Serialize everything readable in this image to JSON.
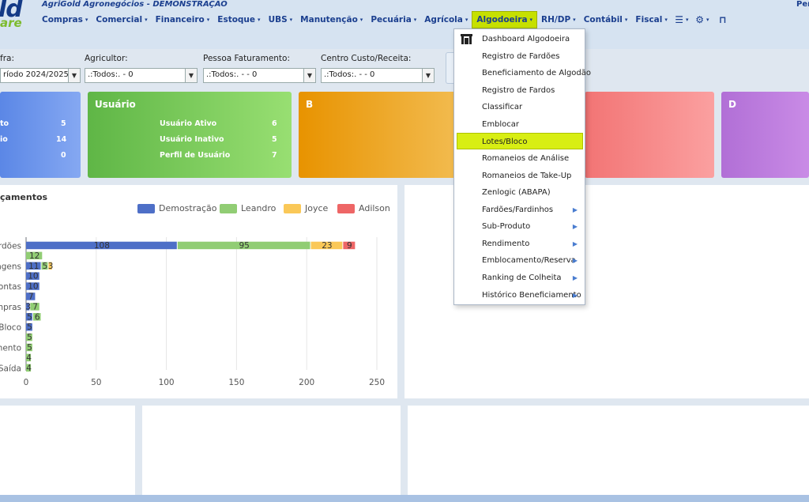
{
  "header": {
    "logo_main": "ld",
    "logo_sub": "are",
    "app_title": "AgriGold Agronegócios - DEMONSTRAÇÃO",
    "user_label": "Per"
  },
  "nav": [
    {
      "label": "Compras",
      "name": "nav-compras"
    },
    {
      "label": "Comercial",
      "name": "nav-comercial"
    },
    {
      "label": "Financeiro",
      "name": "nav-financeiro"
    },
    {
      "label": "Estoque",
      "name": "nav-estoque"
    },
    {
      "label": "UBS",
      "name": "nav-ubs"
    },
    {
      "label": "Manutenção",
      "name": "nav-manutencao"
    },
    {
      "label": "Pecuária",
      "name": "nav-pecuaria"
    },
    {
      "label": "Agrícola",
      "name": "nav-agricola"
    },
    {
      "label": "Algodoeira",
      "name": "nav-algodoeira"
    },
    {
      "label": "RH/DP",
      "name": "nav-rh-dp"
    },
    {
      "label": "Contábil",
      "name": "nav-contabil"
    },
    {
      "label": "Fiscal",
      "name": "nav-fiscal"
    }
  ],
  "nav_icons": {
    "menu_glyph": "☰",
    "gears_glyph": "⚙",
    "caret": "▾",
    "door_glyph": "⊓"
  },
  "filters": {
    "safra": {
      "label": "fra:",
      "value": "ríodo 2024/2025 -"
    },
    "agricultor": {
      "label": "Agricultor:",
      "value": ".:Todos:. - 0"
    },
    "pessoa": {
      "label": "Pessoa Faturamento:",
      "value": ".:Todos:. -  - 0"
    },
    "centro": {
      "label": "Centro Custo/Receita:",
      "value": ".:Todos:. -  - 0"
    }
  },
  "cards": {
    "a": {
      "rows": [
        {
          "label": "to",
          "value": "5"
        },
        {
          "label": "io",
          "value": "14"
        },
        {
          "label": "",
          "value": "0"
        }
      ]
    },
    "user": {
      "title": "Usuário",
      "rows": [
        {
          "label": "Usuário Ativo",
          "value": "6"
        },
        {
          "label": "Usuário Inativo",
          "value": "5"
        },
        {
          "label": "Perfil de Usuário",
          "value": "7"
        }
      ]
    },
    "b": {
      "title": "B"
    },
    "d": {
      "title": "D"
    }
  },
  "chart_panel": {
    "title": "çamentos"
  },
  "chart_data": {
    "type": "bar",
    "orientation": "horizontal",
    "stacked": true,
    "legend_position": "top-right",
    "series": [
      {
        "name": "Demostração",
        "color": "#4e6fc7"
      },
      {
        "name": "Leandro",
        "color": "#91cd74"
      },
      {
        "name": "Joyce",
        "color": "#fac858"
      },
      {
        "name": "Adilson",
        "color": "#ee6666"
      }
    ],
    "categories_visible": [
      "rdões",
      "agens",
      "ontas",
      "mpras",
      "Bloco",
      "mento",
      "Saída"
    ],
    "rows": [
      {
        "label": "rdões",
        "values": [
          108,
          95,
          23,
          9
        ]
      },
      {
        "label": "",
        "values": [
          0,
          12,
          0,
          0
        ]
      },
      {
        "label": "agens",
        "values": [
          11,
          5,
          3,
          0
        ]
      },
      {
        "label": "",
        "values": [
          10,
          0,
          0,
          0
        ]
      },
      {
        "label": "ontas",
        "values": [
          10,
          0,
          0,
          0
        ]
      },
      {
        "label": "",
        "values": [
          7,
          0,
          0,
          0
        ]
      },
      {
        "label": "mpras",
        "values": [
          3,
          7,
          0,
          0
        ]
      },
      {
        "label": "",
        "values": [
          5,
          6,
          0,
          0
        ]
      },
      {
        "label": "Bloco",
        "values": [
          5,
          0,
          0,
          0
        ]
      },
      {
        "label": "",
        "values": [
          0,
          5,
          0,
          0
        ]
      },
      {
        "label": "mento",
        "values": [
          0,
          5,
          0,
          0
        ]
      },
      {
        "label": "",
        "values": [
          0,
          4,
          0,
          0
        ]
      },
      {
        "label": "Saída",
        "values": [
          0,
          4,
          0,
          0
        ]
      }
    ],
    "x_ticks": [
      "0",
      "50",
      "100",
      "150",
      "200",
      "250"
    ],
    "xlim": [
      0,
      250
    ],
    "grid": true
  },
  "dropdown": {
    "items": [
      {
        "label": "Dashboard Algodoeira",
        "submenu": false,
        "icon": "building-icon"
      },
      {
        "label": "Registro de Fardões",
        "submenu": false
      },
      {
        "label": "Beneficiamento de Algodão",
        "submenu": false
      },
      {
        "label": "Registro de Fardos",
        "submenu": false
      },
      {
        "label": "Classificar",
        "submenu": false
      },
      {
        "label": "Emblocar",
        "submenu": false
      },
      {
        "label": "Lotes/Bloco",
        "submenu": false,
        "highlighted": true
      },
      {
        "label": "Romaneios de Análise",
        "submenu": false
      },
      {
        "label": "Romaneios de Take-Up",
        "submenu": false
      },
      {
        "label": "Zenlogic (ABAPA)",
        "submenu": false
      },
      {
        "label": "Fardões/Fardinhos",
        "submenu": true
      },
      {
        "label": "Sub-Produto",
        "submenu": true
      },
      {
        "label": "Rendimento",
        "submenu": true
      },
      {
        "label": "Emblocamento/Reserva",
        "submenu": true
      },
      {
        "label": "Ranking de Colheita",
        "submenu": true
      },
      {
        "label": "Histórico Beneficiamento",
        "submenu": true
      }
    ],
    "submenu_glyph": "▶"
  }
}
